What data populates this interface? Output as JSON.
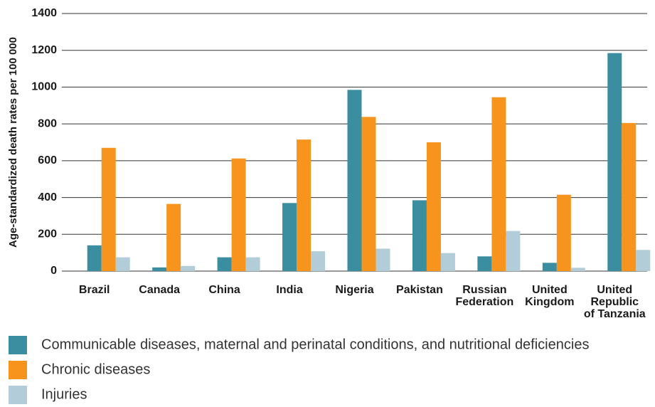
{
  "chart_data": {
    "type": "bar",
    "y_label": "Age-standardized death rates per 100 000",
    "categories": [
      "Brazil",
      "Canada",
      "China",
      "India",
      "Nigeria",
      "Pakistan",
      "Russian\nFederation",
      "United\nKingdom",
      "United\nRepublic\nof Tanzania"
    ],
    "series": [
      {
        "name": "Communicable diseases, maternal and perinatal conditions, and nutritional deficiencies",
        "color": "#3b8ea0",
        "values": [
          140,
          20,
          75,
          370,
          985,
          385,
          80,
          45,
          1185
        ]
      },
      {
        "name": "Chronic diseases",
        "color": "#f7941d",
        "values": [
          670,
          365,
          612,
          715,
          838,
          700,
          945,
          415,
          805
        ]
      },
      {
        "name": "Injuries",
        "color": "#b3cdd8",
        "values": [
          75,
          28,
          75,
          108,
          122,
          98,
          218,
          18,
          115
        ]
      }
    ],
    "ylim": [
      0,
      1400
    ],
    "yticks": [
      0,
      200,
      400,
      600,
      800,
      1000,
      1200,
      1400
    ],
    "grid": true
  }
}
